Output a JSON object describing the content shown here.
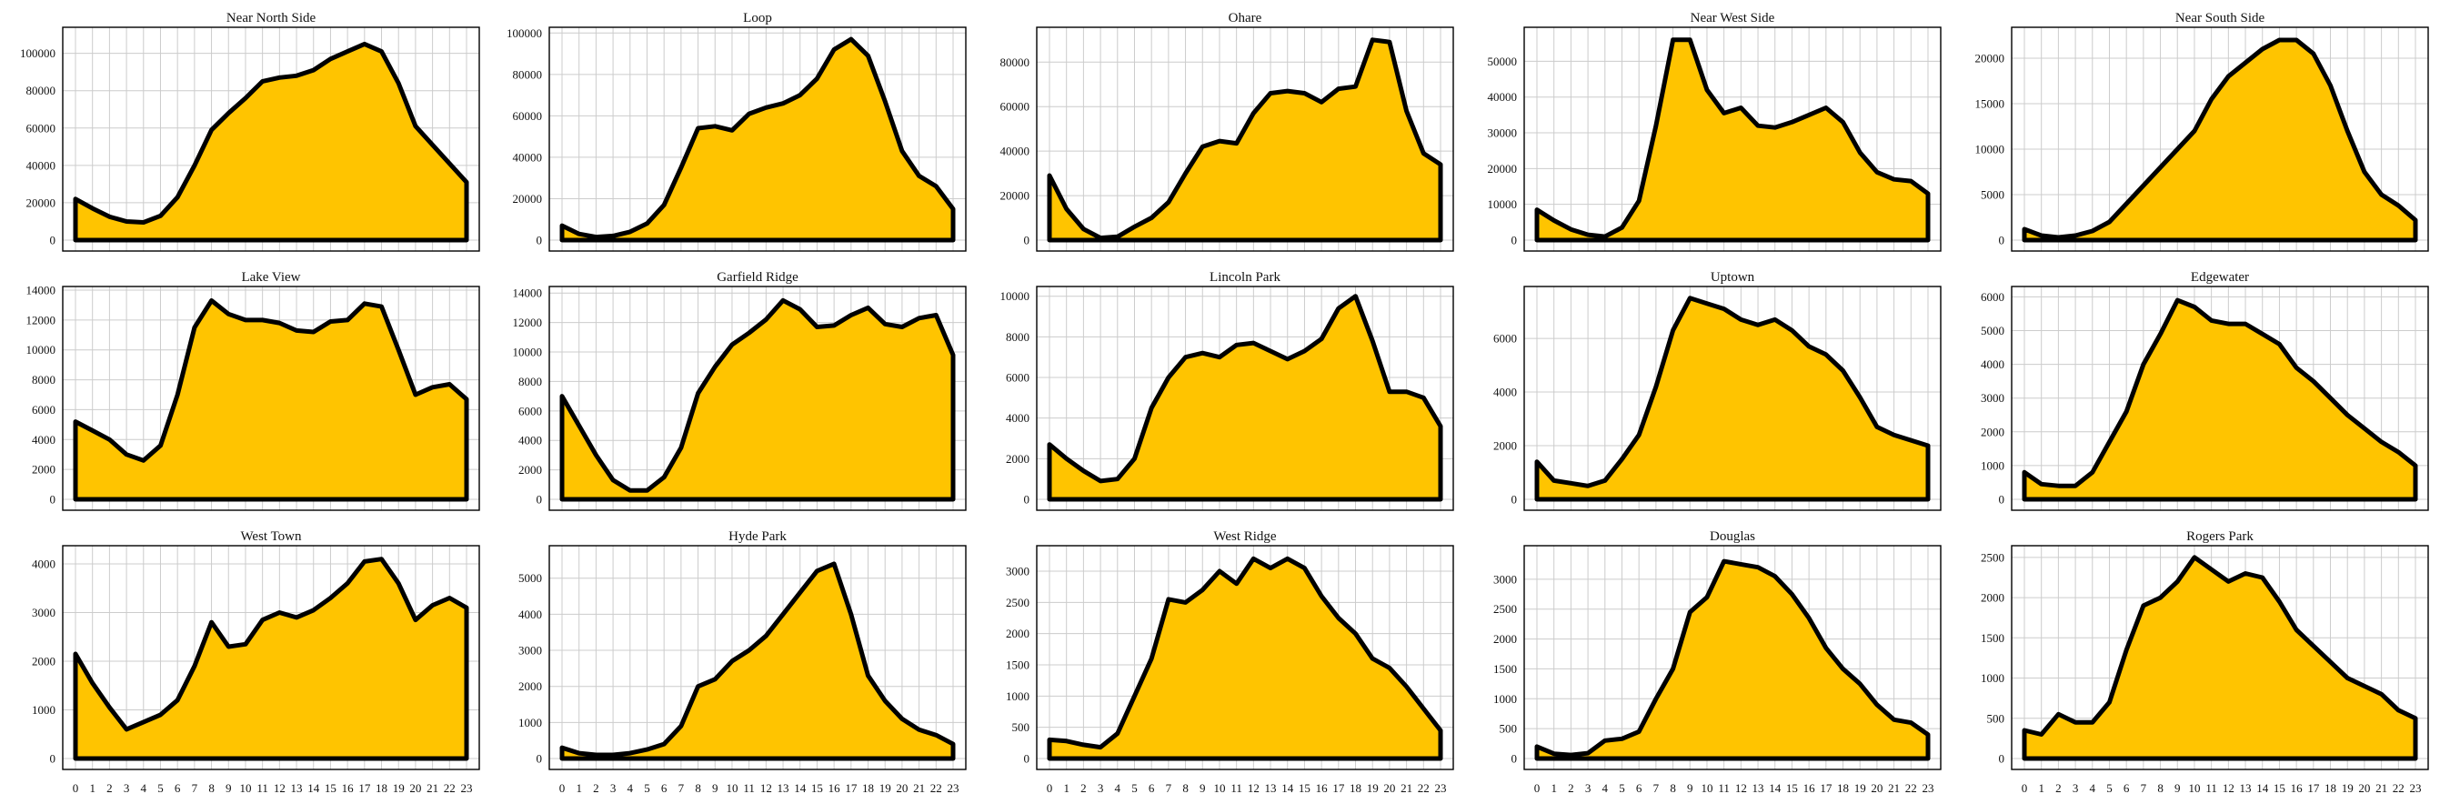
{
  "chart_data": [
    {
      "type": "area",
      "title": "Near North Side",
      "x": [
        0,
        1,
        2,
        3,
        4,
        5,
        6,
        7,
        8,
        9,
        10,
        11,
        12,
        13,
        14,
        15,
        16,
        17,
        18,
        19,
        20,
        21,
        22,
        23
      ],
      "values": [
        22000,
        17000,
        12500,
        10000,
        9500,
        13000,
        23000,
        40000,
        59000,
        68000,
        76000,
        85000,
        87000,
        88000,
        91000,
        97000,
        101000,
        105000,
        101000,
        84000,
        61000,
        51000,
        41000,
        31000
      ],
      "ylim": [
        0,
        112000
      ],
      "yticks": [
        0,
        20000,
        40000,
        60000,
        80000,
        100000
      ],
      "ytick_labels": [
        "0",
        "20000",
        "40000",
        "60000",
        "80000",
        "100000"
      ]
    },
    {
      "type": "area",
      "title": "Loop",
      "x": [
        0,
        1,
        2,
        3,
        4,
        5,
        6,
        7,
        8,
        9,
        10,
        11,
        12,
        13,
        14,
        15,
        16,
        17,
        18,
        19,
        20,
        21,
        22,
        23
      ],
      "values": [
        7000,
        3000,
        1500,
        2000,
        4000,
        8000,
        17000,
        35000,
        54000,
        55000,
        53000,
        61000,
        64000,
        66000,
        70000,
        78000,
        92000,
        97000,
        89000,
        67000,
        43000,
        31000,
        26000,
        15000
      ],
      "ylim": [
        0,
        101000
      ],
      "yticks": [
        0,
        20000,
        40000,
        60000,
        80000,
        100000
      ],
      "ytick_labels": [
        "0",
        "20000",
        "40000",
        "60000",
        "80000",
        "100000"
      ]
    },
    {
      "type": "area",
      "title": "Ohare",
      "x": [
        0,
        1,
        2,
        3,
        4,
        5,
        6,
        7,
        8,
        9,
        10,
        11,
        12,
        13,
        14,
        15,
        16,
        17,
        18,
        19,
        20,
        21,
        22,
        23
      ],
      "values": [
        29000,
        14000,
        5000,
        1000,
        1500,
        6000,
        10000,
        17000,
        30000,
        42000,
        44500,
        43500,
        57000,
        66000,
        67000,
        66000,
        62000,
        68000,
        69000,
        90000,
        89000,
        58000,
        39000,
        34000
      ],
      "ylim": [
        0,
        94000
      ],
      "yticks": [
        0,
        20000,
        40000,
        60000,
        80000
      ],
      "ytick_labels": [
        "0",
        "20000",
        "40000",
        "60000",
        "80000"
      ]
    },
    {
      "type": "area",
      "title": "Near West Side",
      "x": [
        0,
        1,
        2,
        3,
        4,
        5,
        6,
        7,
        8,
        9,
        10,
        11,
        12,
        13,
        14,
        15,
        16,
        17,
        18,
        19,
        20,
        21,
        22,
        23
      ],
      "values": [
        8500,
        5500,
        3000,
        1500,
        1000,
        3500,
        11000,
        32000,
        56000,
        56000,
        42000,
        35500,
        37000,
        32000,
        31500,
        33000,
        35000,
        37000,
        33000,
        24500,
        19000,
        17000,
        16500,
        13000
      ],
      "ylim": [
        0,
        58500
      ],
      "yticks": [
        0,
        10000,
        20000,
        30000,
        40000,
        50000
      ],
      "ytick_labels": [
        "0",
        "10000",
        "20000",
        "30000",
        "40000",
        "50000"
      ]
    },
    {
      "type": "area",
      "title": "Near South Side",
      "x": [
        0,
        1,
        2,
        3,
        4,
        5,
        6,
        7,
        8,
        9,
        10,
        11,
        12,
        13,
        14,
        15,
        16,
        17,
        18,
        19,
        20,
        21,
        22,
        23
      ],
      "values": [
        1200,
        500,
        300,
        500,
        1000,
        2000,
        4000,
        6000,
        8000,
        10000,
        12000,
        15500,
        18000,
        19500,
        21000,
        22000,
        22000,
        20500,
        17000,
        12000,
        7500,
        5000,
        3800,
        2200
      ],
      "ylim": [
        0,
        23000
      ],
      "yticks": [
        0,
        5000,
        10000,
        15000,
        20000
      ],
      "ytick_labels": [
        "0",
        "5000",
        "10000",
        "15000",
        "20000"
      ]
    },
    {
      "type": "area",
      "title": "Lake View",
      "x": [
        0,
        1,
        2,
        3,
        4,
        5,
        6,
        7,
        8,
        9,
        10,
        11,
        12,
        13,
        14,
        15,
        16,
        17,
        18,
        19,
        20,
        21,
        22,
        23
      ],
      "values": [
        5200,
        4600,
        4000,
        3000,
        2600,
        3600,
        7000,
        11500,
        13300,
        12400,
        12000,
        12000,
        11800,
        11300,
        11200,
        11900,
        12000,
        13100,
        12900,
        10000,
        7000,
        7500,
        7700,
        6700
      ],
      "ylim": [
        0,
        14000
      ],
      "yticks": [
        0,
        2000,
        4000,
        6000,
        8000,
        10000,
        12000,
        14000
      ],
      "ytick_labels": [
        "0",
        "2000",
        "4000",
        "6000",
        "8000",
        "10000",
        "12000",
        "14000"
      ]
    },
    {
      "type": "area",
      "title": "Garfield Ridge",
      "x": [
        0,
        1,
        2,
        3,
        4,
        5,
        6,
        7,
        8,
        9,
        10,
        11,
        12,
        13,
        14,
        15,
        16,
        17,
        18,
        19,
        20,
        21,
        22,
        23
      ],
      "values": [
        7000,
        5000,
        3000,
        1300,
        600,
        600,
        1500,
        3500,
        7200,
        9000,
        10500,
        11300,
        12200,
        13500,
        12900,
        11700,
        11800,
        12500,
        13000,
        11900,
        11700,
        12300,
        12500,
        9800
      ],
      "ylim": [
        0,
        14200
      ],
      "yticks": [
        0,
        2000,
        4000,
        6000,
        8000,
        10000,
        12000,
        14000
      ],
      "ytick_labels": [
        "0",
        "2000",
        "4000",
        "6000",
        "8000",
        "10000",
        "12000",
        "14000"
      ]
    },
    {
      "type": "area",
      "title": "Lincoln Park",
      "x": [
        0,
        1,
        2,
        3,
        4,
        5,
        6,
        7,
        8,
        9,
        10,
        11,
        12,
        13,
        14,
        15,
        16,
        17,
        18,
        19,
        20,
        21,
        22,
        23
      ],
      "values": [
        2700,
        2000,
        1400,
        900,
        1000,
        2000,
        4500,
        6000,
        7000,
        7200,
        7000,
        7600,
        7700,
        7300,
        6900,
        7300,
        7900,
        9400,
        10000,
        7800,
        5300,
        5300,
        5000,
        3600
      ],
      "ylim": [
        0,
        10300
      ],
      "yticks": [
        0,
        2000,
        4000,
        6000,
        8000,
        10000
      ],
      "ytick_labels": [
        "0",
        "2000",
        "4000",
        "6000",
        "8000",
        "10000"
      ]
    },
    {
      "type": "area",
      "title": "Uptown",
      "x": [
        0,
        1,
        2,
        3,
        4,
        5,
        6,
        7,
        8,
        9,
        10,
        11,
        12,
        13,
        14,
        15,
        16,
        17,
        18,
        19,
        20,
        21,
        22,
        23
      ],
      "values": [
        1400,
        700,
        600,
        500,
        700,
        1500,
        2400,
        4200,
        6300,
        7500,
        7300,
        7100,
        6700,
        6500,
        6700,
        6300,
        5700,
        5400,
        4800,
        3800,
        2700,
        2400,
        2200,
        2000
      ],
      "ylim": [
        0,
        7800
      ],
      "yticks": [
        0,
        2000,
        4000,
        6000
      ],
      "ytick_labels": [
        "0",
        "2000",
        "4000",
        "6000"
      ]
    },
    {
      "type": "area",
      "title": "Edgewater",
      "x": [
        0,
        1,
        2,
        3,
        4,
        5,
        6,
        7,
        8,
        9,
        10,
        11,
        12,
        13,
        14,
        15,
        16,
        17,
        18,
        19,
        20,
        21,
        22,
        23
      ],
      "values": [
        800,
        450,
        400,
        400,
        800,
        1700,
        2600,
        4000,
        4900,
        5900,
        5700,
        5300,
        5200,
        5200,
        4900,
        4600,
        3900,
        3500,
        3000,
        2500,
        2100,
        1700,
        1400,
        1000
      ],
      "ylim": [
        0,
        6200
      ],
      "yticks": [
        0,
        1000,
        2000,
        3000,
        4000,
        5000,
        6000
      ],
      "ytick_labels": [
        "0",
        "1000",
        "2000",
        "3000",
        "4000",
        "5000",
        "6000"
      ]
    },
    {
      "type": "area",
      "title": "West Town",
      "x": [
        0,
        1,
        2,
        3,
        4,
        5,
        6,
        7,
        8,
        9,
        10,
        11,
        12,
        13,
        14,
        15,
        16,
        17,
        18,
        19,
        20,
        21,
        22,
        23
      ],
      "values": [
        2150,
        1550,
        1050,
        600,
        750,
        900,
        1200,
        1900,
        2800,
        2300,
        2350,
        2850,
        3000,
        2900,
        3050,
        3300,
        3600,
        4050,
        4100,
        3600,
        2850,
        3150,
        3300,
        3100
      ],
      "ylim": [
        0,
        4300
      ],
      "yticks": [
        0,
        1000,
        2000,
        3000,
        4000
      ],
      "ytick_labels": [
        "0",
        "1000",
        "2000",
        "3000",
        "4000"
      ]
    },
    {
      "type": "area",
      "title": "Hyde Park",
      "x": [
        0,
        1,
        2,
        3,
        4,
        5,
        6,
        7,
        8,
        9,
        10,
        11,
        12,
        13,
        14,
        15,
        16,
        17,
        18,
        19,
        20,
        21,
        22,
        23
      ],
      "values": [
        300,
        150,
        100,
        100,
        150,
        250,
        400,
        900,
        2000,
        2200,
        2700,
        3000,
        3400,
        4000,
        4600,
        5200,
        5400,
        4000,
        2300,
        1600,
        1100,
        800,
        650,
        400
      ],
      "ylim": [
        0,
        5800
      ],
      "yticks": [
        0,
        1000,
        2000,
        3000,
        4000,
        5000
      ],
      "ytick_labels": [
        "0",
        "1000",
        "2000",
        "3000",
        "4000",
        "5000"
      ]
    },
    {
      "type": "area",
      "title": "West Ridge",
      "x": [
        0,
        1,
        2,
        3,
        4,
        5,
        6,
        7,
        8,
        9,
        10,
        11,
        12,
        13,
        14,
        15,
        16,
        17,
        18,
        19,
        20,
        21,
        22,
        23
      ],
      "values": [
        300,
        280,
        220,
        180,
        400,
        1000,
        1600,
        2550,
        2500,
        2700,
        3000,
        2800,
        3200,
        3050,
        3200,
        3050,
        2600,
        2250,
        2000,
        1600,
        1450,
        1150,
        800,
        450
      ],
      "ylim": [
        0,
        3350
      ],
      "yticks": [
        0,
        500,
        1000,
        1500,
        2000,
        2500,
        3000
      ],
      "ytick_labels": [
        "0",
        "500",
        "1000",
        "1500",
        "2000",
        "2500",
        "3000"
      ]
    },
    {
      "type": "area",
      "title": "Douglas",
      "x": [
        0,
        1,
        2,
        3,
        4,
        5,
        6,
        7,
        8,
        9,
        10,
        11,
        12,
        13,
        14,
        15,
        16,
        17,
        18,
        19,
        20,
        21,
        22,
        23
      ],
      "values": [
        200,
        80,
        60,
        90,
        300,
        330,
        450,
        1000,
        1500,
        2450,
        2700,
        3300,
        3250,
        3200,
        3050,
        2750,
        2350,
        1850,
        1500,
        1250,
        900,
        650,
        600,
        400
      ],
      "ylim": [
        0,
        3500
      ],
      "yticks": [
        0,
        500,
        1000,
        1500,
        2000,
        2500,
        3000
      ],
      "ytick_labels": [
        "0",
        "500",
        "1000",
        "1500",
        "2000",
        "2500",
        "3000"
      ]
    },
    {
      "type": "area",
      "title": "Rogers Park",
      "x": [
        0,
        1,
        2,
        3,
        4,
        5,
        6,
        7,
        8,
        9,
        10,
        11,
        12,
        13,
        14,
        15,
        16,
        17,
        18,
        19,
        20,
        21,
        22,
        23
      ],
      "values": [
        350,
        300,
        550,
        450,
        450,
        700,
        1350,
        1900,
        2000,
        2200,
        2500,
        2350,
        2200,
        2300,
        2250,
        1950,
        1600,
        1400,
        1200,
        1000,
        900,
        800,
        600,
        500
      ],
      "ylim": [
        0,
        2600
      ],
      "yticks": [
        0,
        500,
        1000,
        1500,
        2000,
        2500
      ],
      "ytick_labels": [
        "0",
        "500",
        "1000",
        "1500",
        "2000",
        "2500"
      ]
    }
  ]
}
